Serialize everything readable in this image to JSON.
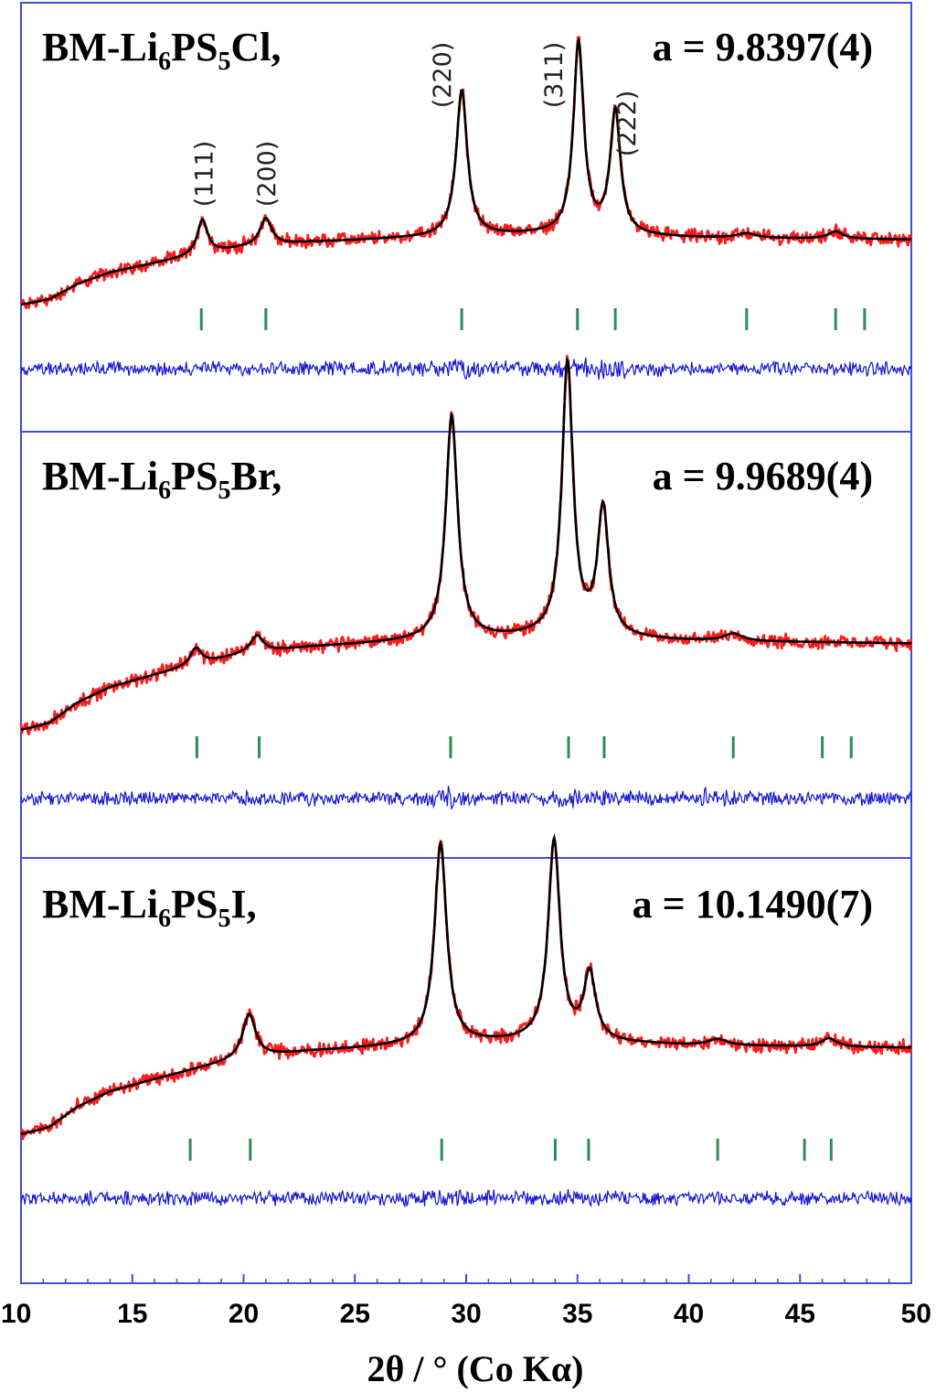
{
  "chart_data": {
    "type": "line",
    "xlabel": "2θ / ° (Co Kα)",
    "xlim": [
      10,
      50
    ],
    "xticks": [
      "10",
      "15",
      "20",
      "25",
      "30",
      "35",
      "40",
      "45",
      "50"
    ],
    "grid": false,
    "colors": {
      "observed": "#ff1a1a",
      "calculated": "#000000",
      "difference": "#1414d2",
      "reflection_ticks": "#2e8b57",
      "frame": "#3b4fd8"
    },
    "panels": [
      {
        "sample": {
          "prefix": "BM-Li",
          "n1": "6",
          "mid": "PS",
          "n2": "5",
          "suffix": "Cl,"
        },
        "lattice_parameter": "a = 9.8397(4)",
        "hkl_labels": [
          {
            "text": "(111)",
            "x": 18.2
          },
          {
            "text": "(200)",
            "x": 21.0
          },
          {
            "text": "(220)",
            "x": 28.9
          },
          {
            "text": "(311)",
            "x": 33.9
          },
          {
            "text": "(222)",
            "x": 38.0
          }
        ],
        "baseline": {
          "x": [
            10,
            10.5,
            11.3,
            12.5,
            14.0,
            16.0,
            18.0,
            20.0,
            23.0,
            27.0,
            30.0,
            33.0,
            36.0,
            40.0,
            45.0,
            50.0
          ],
          "y": [
            0,
            2,
            6,
            22,
            35,
            45,
            54,
            62,
            68,
            72,
            74,
            76,
            75,
            73,
            72,
            71
          ]
        },
        "peaks": [
          {
            "position": 18.15,
            "height": 38,
            "width": 0.28
          },
          {
            "position": 21.0,
            "height": 30,
            "width": 0.32
          },
          {
            "position": 29.8,
            "height": 160,
            "width": 0.3
          },
          {
            "position": 35.05,
            "height": 210,
            "width": 0.28
          },
          {
            "position": 36.7,
            "height": 135,
            "width": 0.28
          },
          {
            "position": 42.6,
            "height": 5,
            "width": 0.5
          },
          {
            "position": 46.6,
            "height": 8,
            "width": 0.4
          }
        ],
        "reflections": [
          18.1,
          21.0,
          29.8,
          35.0,
          36.7,
          42.6,
          46.6,
          47.9
        ],
        "difference_bumps": [
          29.8,
          35.0,
          36.8
        ]
      },
      {
        "sample": {
          "prefix": "BM-Li",
          "n1": "6",
          "mid": "PS",
          "n2": "5",
          "suffix": "Br,"
        },
        "lattice_parameter": "a = 9.9689(4)",
        "hkl_labels": [],
        "baseline": {
          "x": [
            10,
            10.5,
            11.3,
            12.5,
            14.0,
            16.0,
            18.0,
            20.0,
            23.0,
            27.0,
            30.0,
            33.0,
            36.0,
            40.0,
            45.0,
            50.0
          ],
          "y": [
            0,
            2,
            6,
            22,
            35,
            45,
            54,
            62,
            68,
            72,
            74,
            76,
            75,
            73,
            72,
            71
          ]
        },
        "peaks": [
          {
            "position": 17.85,
            "height": 14,
            "width": 0.3
          },
          {
            "position": 20.6,
            "height": 14,
            "width": 0.35
          },
          {
            "position": 29.35,
            "height": 185,
            "width": 0.32
          },
          {
            "position": 34.55,
            "height": 225,
            "width": 0.3
          },
          {
            "position": 36.15,
            "height": 105,
            "width": 0.3
          },
          {
            "position": 42.0,
            "height": 6,
            "width": 0.5
          }
        ],
        "reflections": [
          17.9,
          20.7,
          29.3,
          34.6,
          36.2,
          42.0,
          46.0,
          47.3
        ],
        "difference_bumps": [
          29.4,
          34.6,
          40.7
        ]
      },
      {
        "sample": {
          "prefix": "BM-Li",
          "n1": "6",
          "mid": "PS",
          "n2": "5",
          "suffix": "I,"
        },
        "lattice_parameter": "a = 10.1490(7)",
        "hkl_labels": [],
        "baseline": {
          "x": [
            10,
            10.5,
            11.3,
            12.5,
            14.0,
            16.0,
            18.0,
            20.0,
            23.0,
            27.0,
            30.0,
            33.0,
            36.0,
            40.0,
            45.0,
            50.0
          ],
          "y": [
            0,
            2,
            6,
            22,
            35,
            45,
            54,
            62,
            68,
            72,
            74,
            76,
            75,
            73,
            72,
            71
          ]
        },
        "peaks": [
          {
            "position": 20.25,
            "height": 36,
            "width": 0.35
          },
          {
            "position": 28.85,
            "height": 165,
            "width": 0.33
          },
          {
            "position": 33.95,
            "height": 165,
            "width": 0.32
          },
          {
            "position": 35.55,
            "height": 55,
            "width": 0.32
          },
          {
            "position": 41.3,
            "height": 5,
            "width": 0.5
          },
          {
            "position": 46.3,
            "height": 7,
            "width": 0.4
          }
        ],
        "reflections": [
          17.6,
          20.3,
          28.9,
          34.0,
          35.5,
          41.3,
          45.2,
          46.4
        ],
        "difference_bumps": [
          28.9,
          34.0
        ]
      }
    ]
  }
}
